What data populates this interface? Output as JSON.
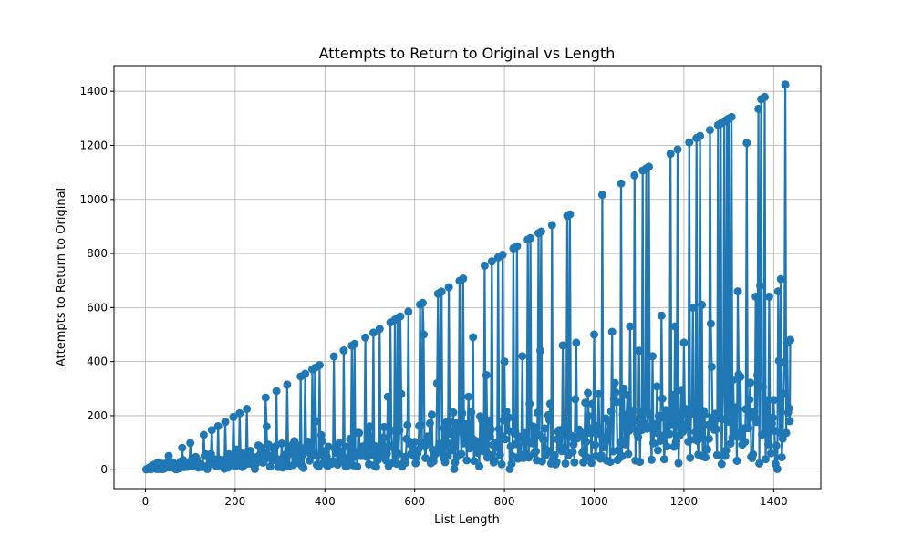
{
  "chart_data": {
    "type": "line",
    "title": "Attempts to Return to Original vs Length",
    "xlabel": "List Length",
    "ylabel": "Attempts to Return to Original",
    "xlim": [
      -70,
      1505
    ],
    "ylim": [
      -70,
      1495
    ],
    "xticks": [
      0,
      200,
      400,
      600,
      800,
      1000,
      1200,
      1400
    ],
    "yticks": [
      0,
      200,
      400,
      600,
      800,
      1000,
      1200,
      1400
    ],
    "grid": true,
    "series_color": "#1f77b4",
    "marker": "circle",
    "n_max": 1437,
    "upper_envelope": [
      [
        2,
        1
      ],
      [
        10,
        9
      ],
      [
        28,
        27
      ],
      [
        52,
        51
      ],
      [
        82,
        81
      ],
      [
        100,
        99
      ],
      [
        130,
        129
      ],
      [
        148,
        147
      ],
      [
        162,
        161
      ],
      [
        178,
        177
      ],
      [
        196,
        195
      ],
      [
        210,
        209
      ],
      [
        226,
        225
      ],
      [
        268,
        267
      ],
      [
        292,
        291
      ],
      [
        316,
        315
      ],
      [
        346,
        345
      ],
      [
        356,
        355
      ],
      [
        372,
        371
      ],
      [
        378,
        377
      ],
      [
        388,
        387
      ],
      [
        420,
        419
      ],
      [
        442,
        441
      ],
      [
        460,
        459
      ],
      [
        466,
        465
      ],
      [
        490,
        489
      ],
      [
        508,
        507
      ],
      [
        522,
        521
      ],
      [
        546,
        545
      ],
      [
        556,
        555
      ],
      [
        562,
        561
      ],
      [
        568,
        567
      ],
      [
        586,
        585
      ],
      [
        612,
        611
      ],
      [
        618,
        617
      ],
      [
        652,
        651
      ],
      [
        658,
        657
      ],
      [
        660,
        659
      ],
      [
        676,
        675
      ],
      [
        700,
        699
      ],
      [
        708,
        707
      ],
      [
        756,
        755
      ],
      [
        772,
        771
      ],
      [
        786,
        785
      ],
      [
        796,
        795
      ],
      [
        820,
        819
      ],
      [
        828,
        827
      ],
      [
        852,
        851
      ],
      [
        858,
        857
      ],
      [
        876,
        875
      ],
      [
        882,
        881
      ],
      [
        906,
        905
      ],
      [
        940,
        939
      ],
      [
        946,
        945
      ],
      [
        1018,
        1017
      ],
      [
        1060,
        1059
      ],
      [
        1090,
        1089
      ],
      [
        1108,
        1107
      ],
      [
        1116,
        1115
      ],
      [
        1122,
        1121
      ],
      [
        1170,
        1169
      ],
      [
        1186,
        1185
      ],
      [
        1212,
        1211
      ],
      [
        1228,
        1227
      ],
      [
        1236,
        1235
      ],
      [
        1258,
        1257
      ],
      [
        1276,
        1275
      ],
      [
        1282,
        1281
      ],
      [
        1290,
        1289
      ],
      [
        1296,
        1295
      ],
      [
        1300,
        1299
      ],
      [
        1306,
        1305
      ],
      [
        1340,
        1209
      ],
      [
        1366,
        1335
      ],
      [
        1372,
        1371
      ],
      [
        1380,
        1379
      ],
      [
        1426,
        1425
      ]
    ],
    "mid_points": [
      [
        270,
        160
      ],
      [
        380,
        180
      ],
      [
        500,
        160
      ],
      [
        540,
        270
      ],
      [
        570,
        280
      ],
      [
        620,
        500
      ],
      [
        650,
        320
      ],
      [
        720,
        270
      ],
      [
        730,
        490
      ],
      [
        760,
        350
      ],
      [
        800,
        400
      ],
      [
        840,
        420
      ],
      [
        880,
        440
      ],
      [
        930,
        460
      ],
      [
        960,
        470
      ],
      [
        1000,
        500
      ],
      [
        1040,
        510
      ],
      [
        1080,
        530
      ],
      [
        1100,
        440
      ],
      [
        1130,
        420
      ],
      [
        1150,
        570
      ],
      [
        1180,
        530
      ],
      [
        1200,
        470
      ],
      [
        1220,
        600
      ],
      [
        1240,
        610
      ],
      [
        1260,
        540
      ],
      [
        1300,
        670
      ],
      [
        1320,
        660
      ],
      [
        1360,
        640
      ],
      [
        1370,
        680
      ],
      [
        1390,
        640
      ],
      [
        1410,
        660
      ],
      [
        1416,
        705
      ],
      [
        1430,
        470
      ],
      [
        1437,
        480
      ],
      [
        1436,
        180
      ],
      [
        1436,
        60
      ]
    ]
  }
}
